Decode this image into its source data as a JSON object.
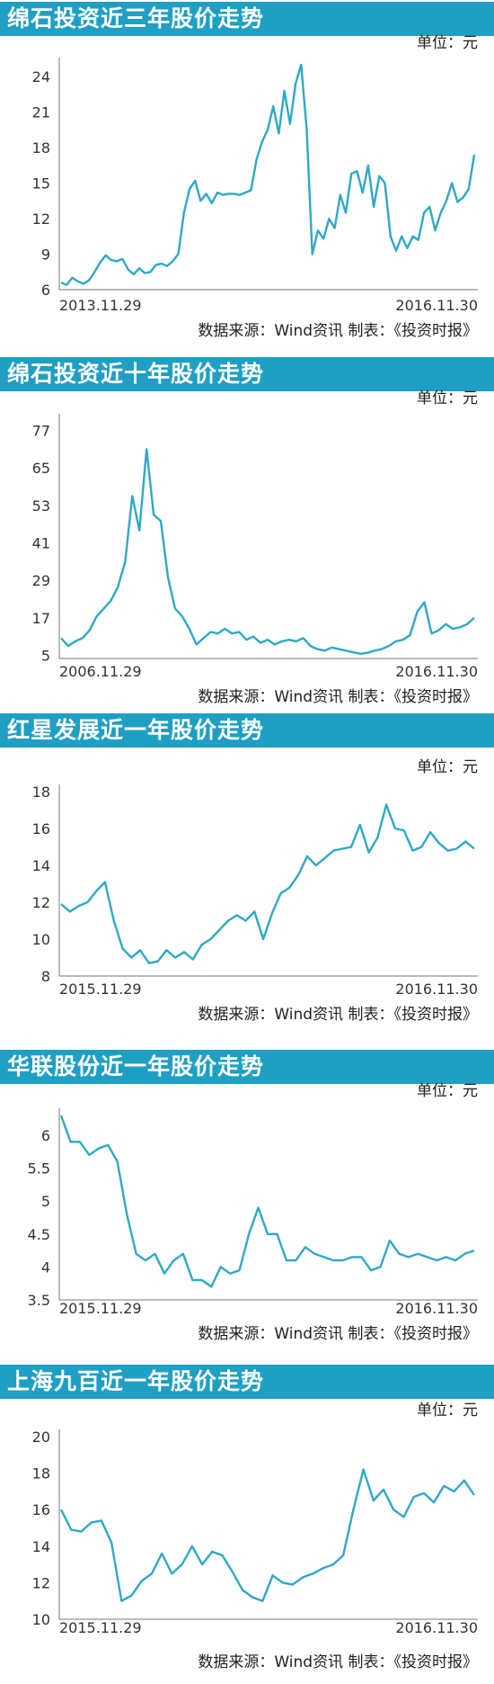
{
  "line_color": "#2fa9c6",
  "title_bg": "#1f9fc4",
  "charts": [
    {
      "title": "绵石投资近三年股价走势",
      "unit": "单位：元",
      "source": "数据来源：Wind资讯  制表：《投资时报》"
    },
    {
      "title": "绵石投资近十年股价走势",
      "unit": "单位：元",
      "source": "数据来源：Wind资讯  制表：《投资时报》"
    },
    {
      "title": "红星发展近一年股价走势",
      "unit": "单位：元",
      "source": "数据来源：Wind资讯  制表：《投资时报》"
    },
    {
      "title": "华联股份近一年股价走势",
      "unit": "单位：元",
      "source": "数据来源：Wind资讯  制表：《投资时报》"
    },
    {
      "title": "上海九百近一年股价走势",
      "unit": "单位：元",
      "source": "数据来源：Wind资讯  制表：《投资时报》"
    }
  ],
  "chart_data": [
    {
      "type": "line",
      "title": "绵石投资近三年股价走势",
      "ylabel": "单位：元",
      "yticks": [
        6,
        9,
        12,
        15,
        18,
        21,
        24
      ],
      "ylim": [
        6,
        25
      ],
      "xlabels": [
        "2013.11.29",
        "2016.11.30"
      ],
      "series": [
        {
          "values": [
            6.6,
            6.4,
            7.0,
            6.7,
            6.5,
            6.8,
            7.5,
            8.3,
            8.9,
            8.5,
            8.4,
            8.6,
            7.7,
            7.3,
            7.8,
            7.4,
            7.5,
            8.1,
            8.2,
            8.0,
            8.4,
            9.0,
            12.5,
            14.5,
            15.2,
            13.5,
            14.1,
            13.3,
            14.2,
            14.0,
            14.1,
            14.1,
            14.0,
            14.2,
            14.4,
            17.0,
            18.5,
            19.5,
            21.5,
            19.2,
            22.8,
            20.0,
            23.4,
            25.0,
            19.5,
            9.0,
            11.0,
            10.3,
            12.0,
            11.2,
            14.0,
            12.5,
            15.8,
            16.0,
            14.2,
            16.5,
            13.0,
            15.6,
            15.0,
            10.5,
            9.3,
            10.5,
            9.5,
            10.5,
            10.2,
            12.5,
            13.0,
            11.0,
            12.5,
            13.5,
            15.0,
            13.4,
            13.8,
            14.5,
            17.4
          ]
        }
      ]
    },
    {
      "type": "line",
      "title": "绵石投资近十年股价走势",
      "ylabel": "单位：元",
      "yticks": [
        5,
        17,
        29,
        41,
        53,
        65,
        77
      ],
      "ylim": [
        4,
        80
      ],
      "xlabels": [
        "2006.11.29",
        "2016.11.30"
      ],
      "series": [
        {
          "values": [
            10.5,
            8.0,
            9.5,
            10.5,
            13.0,
            17.5,
            20.0,
            22.5,
            27.0,
            35.0,
            56.0,
            45.0,
            71.0,
            50.0,
            48.0,
            30.0,
            20.0,
            17.5,
            13.5,
            8.5,
            10.5,
            12.5,
            12.0,
            13.5,
            12.0,
            12.5,
            10.0,
            11.0,
            9.0,
            10.0,
            8.5,
            9.5,
            10.0,
            9.5,
            10.5,
            8.0,
            7.0,
            6.5,
            7.5,
            7.0,
            6.5,
            6.0,
            5.5,
            5.8,
            6.5,
            7.0,
            8.0,
            9.5,
            10.0,
            11.5,
            19.0,
            22.0,
            12.0,
            13.0,
            15.0,
            13.5,
            14.0,
            15.0,
            17.0
          ]
        }
      ]
    },
    {
      "type": "line",
      "title": "红星发展近一年股价走势",
      "ylabel": "单位：元",
      "yticks": [
        8,
        10,
        12,
        14,
        16,
        18
      ],
      "ylim": [
        8,
        18
      ],
      "xlabels": [
        "2015.11.29",
        "2016.11.30"
      ],
      "series": [
        {
          "values": [
            11.9,
            11.5,
            11.8,
            12.0,
            12.6,
            13.1,
            11.0,
            9.5,
            9.0,
            9.4,
            8.7,
            8.8,
            9.4,
            9.0,
            9.3,
            8.9,
            9.7,
            10.0,
            10.5,
            11.0,
            11.3,
            11.0,
            11.5,
            10.0,
            11.4,
            12.5,
            12.8,
            13.5,
            14.5,
            14.0,
            14.4,
            14.8,
            14.9,
            15.0,
            16.2,
            14.7,
            15.5,
            17.3,
            16.0,
            15.9,
            14.8,
            15.0,
            15.8,
            15.2,
            14.8,
            14.9,
            15.3,
            14.9
          ]
        }
      ]
    },
    {
      "type": "line",
      "title": "华联股份近一年股价走势",
      "ylabel": "单位：元",
      "yticks": [
        3.5,
        4,
        4.5,
        5,
        5.5,
        6
      ],
      "ylim": [
        3.5,
        6.3
      ],
      "xlabels": [
        "2015.11.29",
        "2016.11.30"
      ],
      "series": [
        {
          "values": [
            6.3,
            5.9,
            5.9,
            5.7,
            5.8,
            5.85,
            5.6,
            4.8,
            4.2,
            4.1,
            4.2,
            3.9,
            4.1,
            4.2,
            3.8,
            3.8,
            3.7,
            4.0,
            3.9,
            3.95,
            4.5,
            4.9,
            4.5,
            4.5,
            4.1,
            4.1,
            4.3,
            4.2,
            4.15,
            4.1,
            4.1,
            4.15,
            4.15,
            3.95,
            4.0,
            4.4,
            4.2,
            4.15,
            4.2,
            4.15,
            4.1,
            4.15,
            4.1,
            4.2,
            4.25
          ]
        }
      ]
    },
    {
      "type": "line",
      "title": "上海九百近一年股价走势",
      "ylabel": "单位：元",
      "yticks": [
        10,
        12,
        14,
        16,
        18,
        20
      ],
      "ylim": [
        10,
        20
      ],
      "xlabels": [
        "2015.11.29",
        "2016.11.30"
      ],
      "series": [
        {
          "values": [
            16.0,
            14.9,
            14.8,
            15.3,
            15.4,
            14.2,
            11.0,
            11.3,
            12.1,
            12.5,
            13.6,
            12.5,
            13.0,
            14.0,
            13.0,
            13.7,
            13.5,
            12.6,
            11.6,
            11.2,
            11.0,
            12.4,
            12.0,
            11.9,
            12.3,
            12.5,
            12.8,
            13.0,
            13.5,
            16.0,
            18.2,
            16.5,
            17.1,
            16.0,
            15.6,
            16.7,
            16.9,
            16.4,
            17.3,
            17.0,
            17.6,
            16.8
          ]
        }
      ]
    }
  ]
}
